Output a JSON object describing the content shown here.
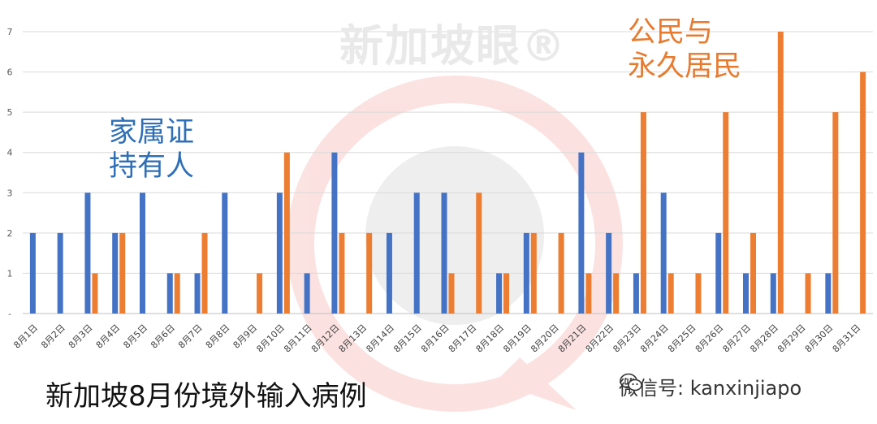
{
  "watermark": {
    "text": "新加坡眼®"
  },
  "wechat": {
    "label": "微信号: kanxinjiapo",
    "icon": "wechat-icon"
  },
  "colors": {
    "blue": "#4472c4",
    "orange": "#ed7d31",
    "label_blue": "#2e6fb8",
    "label_orange": "#e87a2e"
  },
  "chart_data": {
    "type": "bar",
    "title": "新加坡8月份境外输入病例",
    "xlabel": "",
    "ylabel": "",
    "ylim": [
      0,
      7
    ],
    "y_ticks": [
      "-",
      "1",
      "2",
      "3",
      "4",
      "5",
      "6",
      "7"
    ],
    "grid": true,
    "legend": "none",
    "categories": [
      "8月1日",
      "8月2日",
      "8月3日",
      "8月4日",
      "8月5日",
      "8月6日",
      "8月7日",
      "8月8日",
      "8月9日",
      "8月10日",
      "8月11日",
      "8月12日",
      "8月13日",
      "8月14日",
      "8月15日",
      "8月16日",
      "8月17日",
      "8月18日",
      "8月19日",
      "8月20日",
      "8月21日",
      "8月22日",
      "8月23日",
      "8月24日",
      "8月25日",
      "8月26日",
      "8月27日",
      "8月28日",
      "8月29日",
      "8月30日",
      "8月31日"
    ],
    "series": [
      {
        "name": "家属证\n持有人",
        "color": "#4472c4",
        "values": [
          2,
          2,
          3,
          2,
          3,
          1,
          1,
          3,
          0,
          3,
          1,
          4,
          0,
          2,
          3,
          3,
          0,
          1,
          2,
          0,
          4,
          2,
          1,
          3,
          0,
          2,
          1,
          1,
          0,
          1,
          0
        ]
      },
      {
        "name": "公民与\n永久居民",
        "color": "#ed7d31",
        "values": [
          0,
          0,
          1,
          2,
          0,
          1,
          2,
          0,
          1,
          4,
          0,
          2,
          2,
          0,
          0,
          1,
          3,
          1,
          2,
          2,
          1,
          1,
          5,
          1,
          1,
          5,
          2,
          7,
          1,
          5,
          6
        ]
      }
    ]
  }
}
